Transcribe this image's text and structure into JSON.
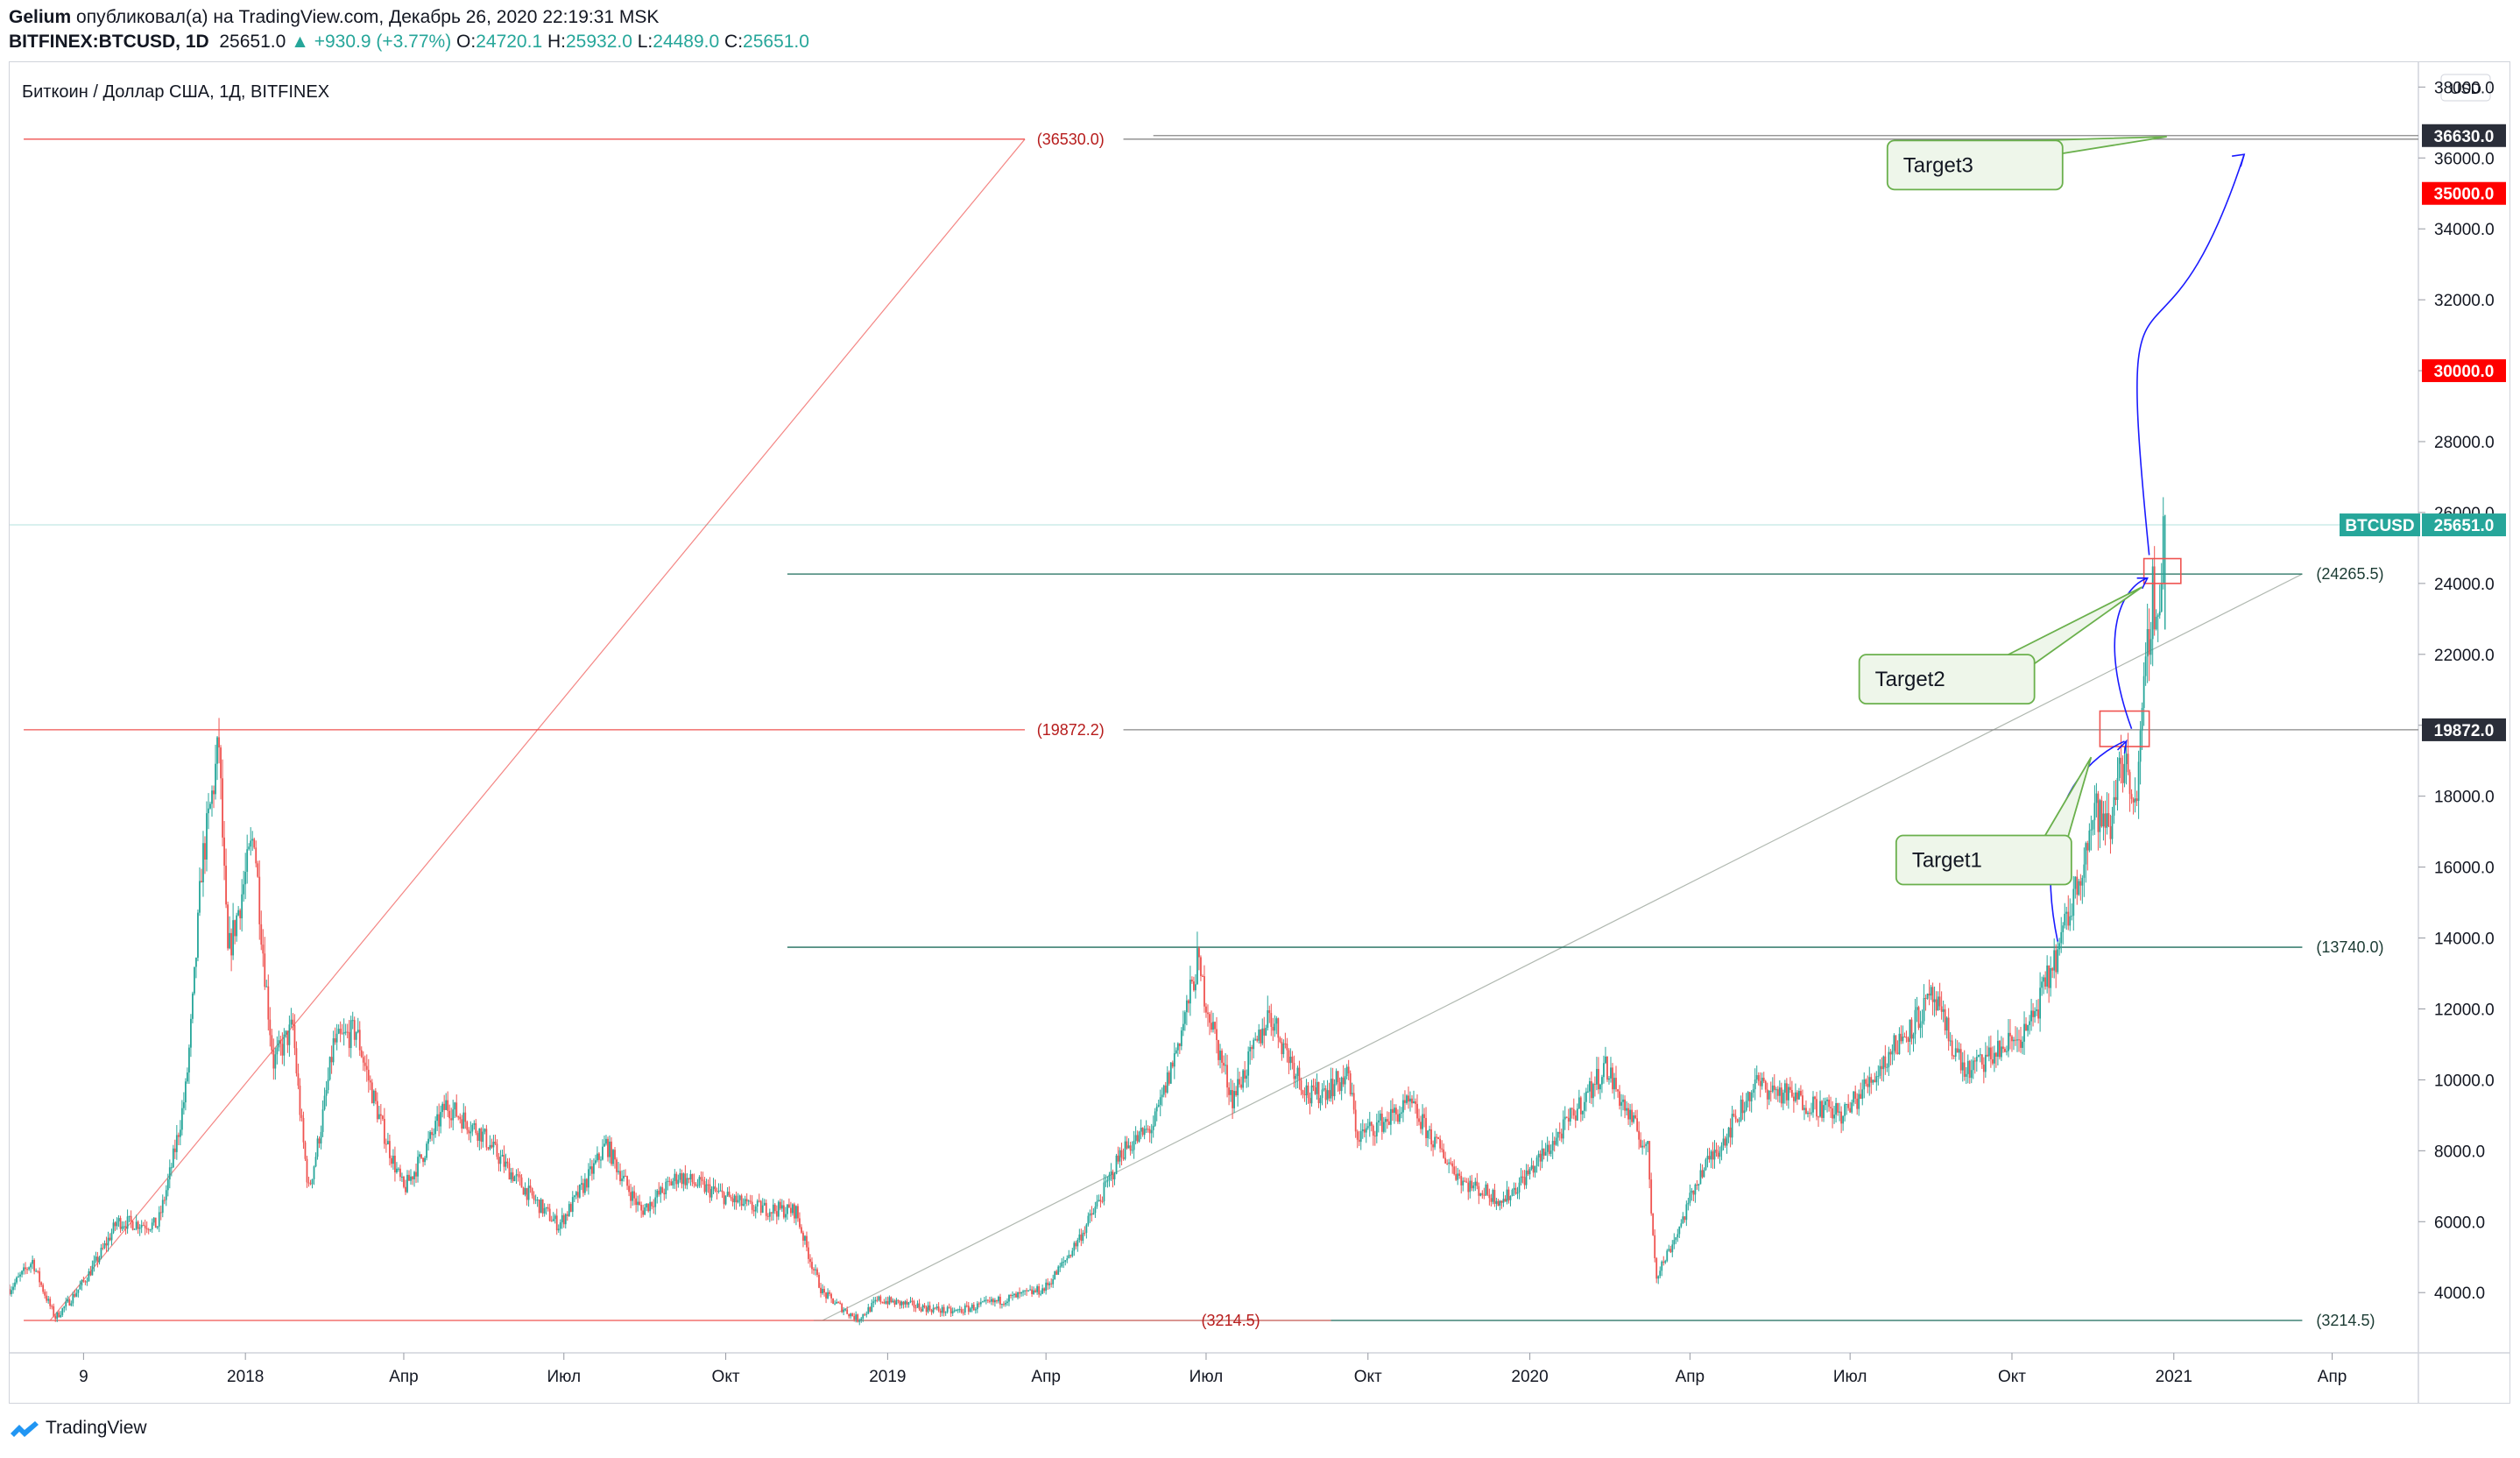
{
  "header": {
    "author": "Gelium",
    "published_text": "опубликовал(а) на TradingView.com, Декабрь 26, 2020 22:19:31 MSK",
    "symbol": "BITFINEX:BTCUSD, 1D",
    "last": "25651.0",
    "change": "▲ +930.9 (+3.77%)",
    "o_label": "O:",
    "o": "24720.1",
    "h_label": "H:",
    "h": "25932.0",
    "l_label": "L:",
    "l": "24489.0",
    "c_label": "C:",
    "c": "25651.0"
  },
  "footer": {
    "brand": "TradingView"
  },
  "colors": {
    "up": "#26a69a",
    "down": "#ef5350",
    "red_line": "#e53935",
    "green_line": "#1b6b5a",
    "arrow": "#1a1aff",
    "callout_border": "#6ab04c",
    "callout_fill": "#eef6ea"
  },
  "chart_data": {
    "type": "candlestick",
    "title": "Биткоин / Доллар США, 1Д, BITFINEX",
    "currency_label": "USD",
    "ylim": [
      2300,
      38700
    ],
    "y_ticks": [
      4000,
      6000,
      8000,
      10000,
      12000,
      14000,
      16000,
      18000,
      20000,
      22000,
      24000,
      26000,
      28000,
      30000,
      32000,
      34000,
      36000,
      38000
    ],
    "x_range": [
      "2017-08-20",
      "2021-05-20"
    ],
    "x_ticks": [
      {
        "date": "2017-10-01",
        "label": "9"
      },
      {
        "date": "2018-01-01",
        "label": "2018"
      },
      {
        "date": "2018-04-01",
        "label": "Апр"
      },
      {
        "date": "2018-07-01",
        "label": "Июл"
      },
      {
        "date": "2018-10-01",
        "label": "Окт"
      },
      {
        "date": "2019-01-01",
        "label": "2019"
      },
      {
        "date": "2019-04-01",
        "label": "Апр"
      },
      {
        "date": "2019-07-01",
        "label": "Июл"
      },
      {
        "date": "2019-10-01",
        "label": "Окт"
      },
      {
        "date": "2020-01-01",
        "label": "2020"
      },
      {
        "date": "2020-04-01",
        "label": "Апр"
      },
      {
        "date": "2020-07-01",
        "label": "Июл"
      },
      {
        "date": "2020-10-01",
        "label": "Окт"
      },
      {
        "date": "2021-01-01",
        "label": "2021"
      },
      {
        "date": "2021-04-01",
        "label": "Апр"
      }
    ],
    "price_keypoints": [
      [
        "2017-08-20",
        4100
      ],
      [
        "2017-09-02",
        4900
      ],
      [
        "2017-09-15",
        3300
      ],
      [
        "2017-10-01",
        4300
      ],
      [
        "2017-10-20",
        6000
      ],
      [
        "2017-11-12",
        5900
      ],
      [
        "2017-11-28",
        9700
      ],
      [
        "2017-12-07",
        16000
      ],
      [
        "2017-12-17",
        19500
      ],
      [
        "2017-12-22",
        13500
      ],
      [
        "2018-01-06",
        17000
      ],
      [
        "2018-01-17",
        10500
      ],
      [
        "2018-01-28",
        11500
      ],
      [
        "2018-02-06",
        6900
      ],
      [
        "2018-02-20",
        11000
      ],
      [
        "2018-03-05",
        11400
      ],
      [
        "2018-04-01",
        6900
      ],
      [
        "2018-04-25",
        9300
      ],
      [
        "2018-05-15",
        8500
      ],
      [
        "2018-06-28",
        5900
      ],
      [
        "2018-07-25",
        8200
      ],
      [
        "2018-08-14",
        6300
      ],
      [
        "2018-09-04",
        7300
      ],
      [
        "2018-10-15",
        6400
      ],
      [
        "2018-11-10",
        6300
      ],
      [
        "2018-11-25",
        4000
      ],
      [
        "2018-12-15",
        3250
      ],
      [
        "2018-12-27",
        3800
      ],
      [
        "2019-02-07",
        3450
      ],
      [
        "2019-03-31",
        4100
      ],
      [
        "2019-05-14",
        8000
      ],
      [
        "2019-06-01",
        8700
      ],
      [
        "2019-06-26",
        13300
      ],
      [
        "2019-07-16",
        9500
      ],
      [
        "2019-08-06",
        11900
      ],
      [
        "2019-08-29",
        9500
      ],
      [
        "2019-09-20",
        10100
      ],
      [
        "2019-09-25",
        8400
      ],
      [
        "2019-10-25",
        9300
      ],
      [
        "2019-11-25",
        7100
      ],
      [
        "2019-12-17",
        6600
      ],
      [
        "2020-01-31",
        9400
      ],
      [
        "2020-02-13",
        10400
      ],
      [
        "2020-03-08",
        8000
      ],
      [
        "2020-03-13",
        4500
      ],
      [
        "2020-04-06",
        7300
      ],
      [
        "2020-05-08",
        9900
      ],
      [
        "2020-06-27",
        9000
      ],
      [
        "2020-07-27",
        11000
      ],
      [
        "2020-08-17",
        12300
      ],
      [
        "2020-09-05",
        10200
      ],
      [
        "2020-10-10",
        11400
      ],
      [
        "2020-10-27",
        13600
      ],
      [
        "2020-11-17",
        17600
      ],
      [
        "2020-11-26",
        17000
      ],
      [
        "2020-12-01",
        19200
      ],
      [
        "2020-12-11",
        18000
      ],
      [
        "2020-12-16",
        21500
      ],
      [
        "2020-12-20",
        23800
      ],
      [
        "2020-12-23",
        22800
      ],
      [
        "2020-12-26",
        25651
      ]
    ],
    "last_price": 25651.0,
    "last_label": "BTCUSD",
    "horizontal_levels": [
      {
        "value": 36530.0,
        "label": "(36530.0)",
        "from": "2017-08-28",
        "to": "2019-03-20",
        "color": "red",
        "label_pos": "end"
      },
      {
        "value": 24265.5,
        "label": "(24265.5)",
        "from": "2018-11-05",
        "to": "2021-03-15",
        "color": "green",
        "label_pos": "right"
      },
      {
        "value": 19872.2,
        "label": "(19872.2)",
        "from": "2017-08-28",
        "to": "2019-09-05",
        "color": "red",
        "label_pos": "end"
      },
      {
        "value": 13740.0,
        "label": "(13740.0)",
        "from": "2018-11-05",
        "to": "2021-03-15",
        "color": "green",
        "label_pos": "right"
      },
      {
        "value": 3214.5,
        "label": "(3214.5)",
        "from": "2017-08-28",
        "to": "2021-03-15",
        "color": "red_green",
        "label_pos": "middle_and_right"
      }
    ],
    "price_scale_badges": [
      {
        "value": 36630.0,
        "label": "36630.0",
        "style": "dark"
      },
      {
        "value": 35000.0,
        "label": "35000.0",
        "style": "red"
      },
      {
        "value": 30000.0,
        "label": "30000.0",
        "style": "red"
      },
      {
        "value": 19872.0,
        "label": "19872.0",
        "style": "dark"
      }
    ],
    "callouts": [
      {
        "label": "Target1",
        "value": 16200,
        "date": "2020-09-15"
      },
      {
        "label": "Target2",
        "value": 21300,
        "date": "2020-08-25"
      },
      {
        "label": "Target3",
        "value": 35800,
        "date": "2020-09-10"
      }
    ]
  }
}
